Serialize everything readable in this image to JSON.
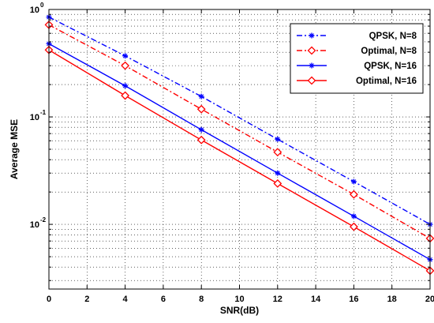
{
  "chart_data": {
    "type": "line",
    "title": "",
    "xlabel": "SNR(dB)",
    "ylabel": "Average MSE",
    "xscale": "linear",
    "yscale": "log",
    "xlim": [
      0,
      20
    ],
    "ylim": [
      0.0025,
      1
    ],
    "grid": true,
    "legend_position": "top-right",
    "x": [
      0,
      4,
      8,
      12,
      16,
      20
    ],
    "xticks": [
      "0",
      "2",
      "4",
      "6",
      "8",
      "10",
      "12",
      "14",
      "16",
      "18",
      "20"
    ],
    "yticks": [
      {
        "base": "10",
        "exp": "0"
      },
      {
        "base": "10",
        "exp": "-1"
      },
      {
        "base": "10",
        "exp": "-2"
      }
    ],
    "series": [
      {
        "name": "QPSK, N=8",
        "color": "#0000ff",
        "line": "dashdot",
        "marker": "asterisk",
        "values": [
          0.85,
          0.37,
          0.155,
          0.062,
          0.025,
          0.01
        ]
      },
      {
        "name": "Optimal, N=8",
        "color": "#ff0000",
        "line": "dashdot",
        "marker": "diamond",
        "values": [
          0.72,
          0.3,
          0.118,
          0.047,
          0.019,
          0.0074
        ]
      },
      {
        "name": "QPSK, N=16",
        "color": "#0000ff",
        "line": "solid",
        "marker": "asterisk",
        "values": [
          0.48,
          0.195,
          0.076,
          0.03,
          0.0119,
          0.0047
        ]
      },
      {
        "name": "Optimal, N=16",
        "color": "#ff0000",
        "line": "solid",
        "marker": "diamond",
        "values": [
          0.42,
          0.158,
          0.061,
          0.024,
          0.0095,
          0.0037
        ]
      }
    ]
  }
}
